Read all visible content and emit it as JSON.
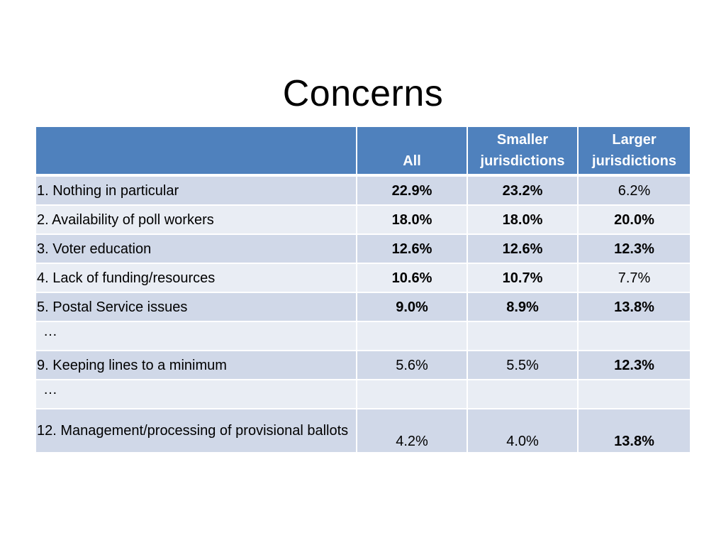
{
  "slide": {
    "title": "Concerns"
  },
  "table": {
    "headers": [
      "",
      "All",
      "Smaller jurisdictions",
      "Larger jurisdictions"
    ],
    "rows": [
      {
        "label": "1. Nothing in particular",
        "cells": [
          {
            "text": "22.9%",
            "bold": true
          },
          {
            "text": "23.2%",
            "bold": true
          },
          {
            "text": "6.2%",
            "bold": false
          }
        ]
      },
      {
        "label": "2. Availability of poll workers",
        "cells": [
          {
            "text": "18.0%",
            "bold": true
          },
          {
            "text": "18.0%",
            "bold": true
          },
          {
            "text": "20.0%",
            "bold": true
          }
        ]
      },
      {
        "label": "3. Voter education",
        "cells": [
          {
            "text": "12.6%",
            "bold": true
          },
          {
            "text": "12.6%",
            "bold": true
          },
          {
            "text": "12.3%",
            "bold": true
          }
        ]
      },
      {
        "label": "4. Lack of funding/resources",
        "cells": [
          {
            "text": "10.6%",
            "bold": true
          },
          {
            "text": "10.7%",
            "bold": true
          },
          {
            "text": "7.7%",
            "bold": false
          }
        ]
      },
      {
        "label": "5. Postal Service issues",
        "cells": [
          {
            "text": "9.0%",
            "bold": true
          },
          {
            "text": "8.9%",
            "bold": true
          },
          {
            "text": "13.8%",
            "bold": true
          }
        ]
      },
      {
        "label": "…",
        "ellipsis": true,
        "cells": [
          {
            "text": "",
            "bold": false
          },
          {
            "text": "",
            "bold": false
          },
          {
            "text": "",
            "bold": false
          }
        ]
      },
      {
        "label": "9.  Keeping lines to a minimum",
        "cells": [
          {
            "text": "5.6%",
            "bold": false
          },
          {
            "text": "5.5%",
            "bold": false
          },
          {
            "text": "12.3%",
            "bold": true
          }
        ]
      },
      {
        "label": "…",
        "ellipsis": true,
        "cells": [
          {
            "text": "",
            "bold": false
          },
          {
            "text": "",
            "bold": false
          },
          {
            "text": "",
            "bold": false
          }
        ]
      },
      {
        "label": "12.  Management/processing of provisional ballots",
        "tall": true,
        "cells": [
          {
            "text": "4.2%",
            "bold": false
          },
          {
            "text": "4.0%",
            "bold": false
          },
          {
            "text": "13.8%",
            "bold": true
          }
        ]
      }
    ]
  }
}
